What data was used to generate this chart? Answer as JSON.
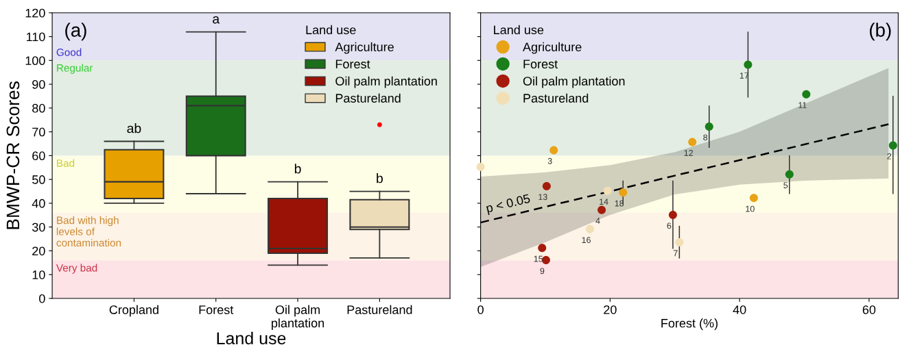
{
  "chart_data": [
    {
      "type": "box",
      "title": "(a)",
      "xlabel": "Land use",
      "ylabel": "BMWP-CR Scores",
      "legend_title": "Land use",
      "legend": "top right",
      "categories": [
        "Cropland",
        "Forest",
        "Oil palm\nplantation",
        "Pastureland"
      ],
      "ylim": [
        0,
        120
      ],
      "yticks": [
        0,
        10,
        20,
        30,
        40,
        50,
        60,
        70,
        80,
        90,
        100,
        110,
        120
      ],
      "series": [
        {
          "name": "Agriculture",
          "color": "#e6a000",
          "boxes": [
            {
              "low": 40,
              "q1": 42,
              "median": 49,
              "q3": 62.5,
              "high": 66
            },
            null,
            null,
            null
          ]
        },
        {
          "name": "Forest",
          "color": "#1b6f1b",
          "boxes": [
            null,
            {
              "low": 44,
              "q1": 60,
              "median": 81,
              "q3": 85,
              "high": 112
            },
            null,
            null
          ]
        },
        {
          "name": "Oil palm plantation",
          "color": "#9a1206",
          "boxes": [
            null,
            null,
            {
              "low": 14,
              "q1": 19,
              "median": 21,
              "q3": 42,
              "high": 49
            },
            null
          ]
        },
        {
          "name": "Pastureland",
          "color": "#ecdcb8",
          "boxes": [
            null,
            null,
            null,
            {
              "low": 17,
              "q1": 29,
              "median": 30,
              "q3": 41.5,
              "high": 45,
              "outliers": [
                73
              ]
            }
          ]
        }
      ],
      "bands": [
        {
          "axis": "y",
          "from": 100,
          "to": 120,
          "label": "Good",
          "color": "#e4e3f3"
        },
        {
          "axis": "y",
          "from": 60,
          "to": 100,
          "label": "Regular",
          "color": "#e3ede3"
        },
        {
          "axis": "y",
          "from": 36,
          "to": 60,
          "label": "Bad",
          "color": "#fefee7"
        },
        {
          "axis": "y",
          "from": 16,
          "to": 36,
          "label": "Bad with high\nlevels of\ncontamination",
          "color": "#fdf3e6"
        },
        {
          "axis": "y",
          "from": 0,
          "to": 16,
          "label": "Very bad",
          "color": "#fde2e6"
        }
      ],
      "annotations": [
        "ab",
        "a",
        "b",
        "b"
      ]
    },
    {
      "type": "scatter",
      "title": "(b)",
      "xlabel": "Forest (%)",
      "legend_title": "Land use",
      "legend": "top left",
      "marker": "circle",
      "tick_labels": "x",
      "xlim": [
        0,
        64.5
      ],
      "xticks": [
        0,
        20,
        40,
        60
      ],
      "ylim": [
        0,
        120
      ],
      "yticks": [
        0,
        10,
        20,
        30,
        40,
        50,
        60,
        70,
        80,
        90,
        100,
        110,
        120
      ],
      "series": [
        {
          "name": "Agriculture",
          "color": "#e8a317",
          "x": [
            11.3,
            32.7,
            22.0,
            42.2
          ],
          "values": [
            62.3,
            65.7,
            44.5,
            42.2
          ],
          "errors": [
            null,
            null,
            [
              39.7,
              49.3
            ],
            null
          ]
        },
        {
          "name": "Forest",
          "color": "#1a7f1a",
          "x": [
            41.3,
            50.3,
            35.3,
            63.7,
            47.7
          ],
          "values": [
            98.2,
            85.8,
            72.2,
            64.3,
            52.1
          ],
          "errors": [
            [
              84.6,
              111.9
            ],
            null,
            [
              63.5,
              80.8
            ],
            [
              44.1,
              84.9
            ],
            [
              44.1,
              59.9
            ]
          ]
        },
        {
          "name": "Oil palm plantation",
          "color": "#a51c0c",
          "x": [
            10.2,
            18.7,
            29.7,
            9.5,
            10.1
          ],
          "values": [
            47.2,
            37.2,
            35.1,
            21.2,
            16.1
          ],
          "errors": [
            null,
            null,
            [
              21.1,
              49.3
            ],
            null,
            null
          ]
        },
        {
          "name": "Pastureland",
          "color": "#f2dfb5",
          "x": [
            0,
            19.6,
            16.9,
            30.7
          ],
          "values": [
            55.3,
            45.2,
            29.1,
            23.6
          ],
          "errors": [
            null,
            null,
            null,
            [
              17.0,
              30.3
            ]
          ]
        },
        {
          "type": "line",
          "color": "#000000",
          "line_style": "dashed",
          "marker": "none",
          "x": [
            0,
            10,
            20,
            30,
            40,
            50,
            63.0
          ],
          "values": [
            31.9,
            38.5,
            45.0,
            51.6,
            58.1,
            64.7,
            73.2
          ],
          "lower": [
            13.2,
            23.6,
            35.1,
            43.7,
            47.8,
            49.5,
            50.4
          ],
          "upper": [
            51.2,
            53.0,
            56.0,
            61.5,
            70.0,
            81.7,
            96.8
          ]
        }
      ],
      "bands": [
        {
          "axis": "y",
          "from": 100,
          "to": 120,
          "color": "#e4e3f3"
        },
        {
          "axis": "y",
          "from": 60,
          "to": 100,
          "color": "#e3ede3"
        },
        {
          "axis": "y",
          "from": 36,
          "to": 60,
          "color": "#fefee7"
        },
        {
          "axis": "y",
          "from": 16,
          "to": 36,
          "color": "#fdf3e6"
        },
        {
          "axis": "y",
          "from": 0,
          "to": 16,
          "color": "#fde2e6"
        }
      ],
      "annotations": [
        {
          "text": "p < 0.05",
          "x": 1,
          "y": 36
        },
        {
          "text": "3",
          "x": 11.3,
          "y": 62.3
        },
        {
          "text": "12",
          "x": 32.7,
          "y": 65.7
        },
        {
          "text": "18",
          "x": 22.0,
          "y": 44.5
        },
        {
          "text": "10",
          "x": 42.2,
          "y": 42.2
        },
        {
          "text": "17",
          "x": 41.3,
          "y": 98.2
        },
        {
          "text": "11",
          "x": 50.3,
          "y": 85.8
        },
        {
          "text": "8",
          "x": 35.3,
          "y": 72.2
        },
        {
          "text": "2",
          "x": 63.7,
          "y": 64.3
        },
        {
          "text": "5",
          "x": 47.7,
          "y": 52.1
        },
        {
          "text": "13",
          "x": 10.2,
          "y": 47.2
        },
        {
          "text": "4",
          "x": 18.7,
          "y": 37.2
        },
        {
          "text": "6",
          "x": 29.7,
          "y": 35.1
        },
        {
          "text": "15",
          "x": 9.5,
          "y": 21.2
        },
        {
          "text": "9",
          "x": 10.1,
          "y": 16.1
        },
        {
          "text": "14",
          "x": 19.6,
          "y": 45.2
        },
        {
          "text": "16",
          "x": 16.9,
          "y": 29.1
        },
        {
          "text": "7",
          "x": 30.7,
          "y": 23.6
        }
      ]
    }
  ]
}
